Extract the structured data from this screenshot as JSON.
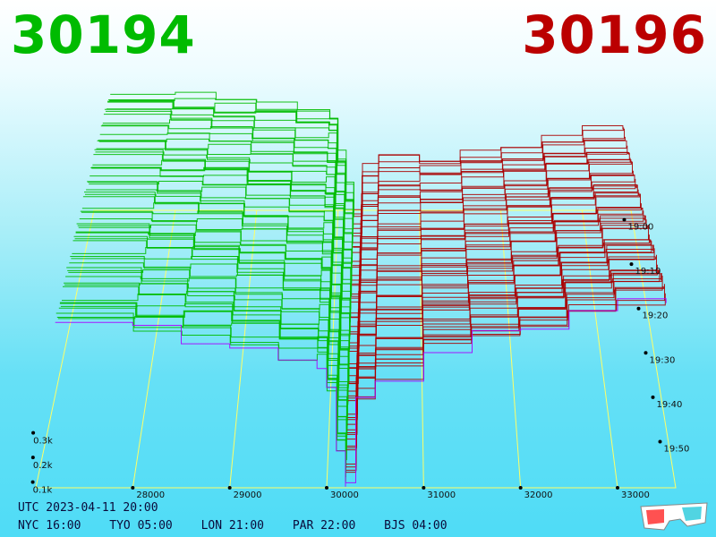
{
  "header": {
    "bid_price": "30194",
    "ask_price": "30196",
    "bid_color": "#00bb00",
    "ask_color": "#bb0000"
  },
  "footer": {
    "utc": "UTC 2023-04-11 20:00",
    "zones": [
      {
        "label": "NYC 16:00"
      },
      {
        "label": "TYO 05:00"
      },
      {
        "label": "LON 21:00"
      },
      {
        "label": "PAR 22:00"
      },
      {
        "label": "BJS 04:00"
      }
    ]
  },
  "icons": {
    "glasses": "3d-glasses-icon"
  },
  "chart_data": {
    "type": "area",
    "view": "3d-depth",
    "x_axis": {
      "ticks": [
        28000,
        29000,
        30000,
        31000,
        32000,
        33000
      ],
      "range": [
        27000,
        33600
      ]
    },
    "z_axis": {
      "ticks": [
        "0.1k",
        "0.2k",
        "0.3k"
      ],
      "values": [
        100,
        200,
        300
      ]
    },
    "time_axis": {
      "ticks": [
        "19:00",
        "19:10",
        "19:20",
        "19:30",
        "19:40",
        "19:50"
      ]
    },
    "snapshots": 60,
    "colors": {
      "bid": "#00bb00",
      "ask": "#aa0000",
      "latest": "#aa00ff",
      "grid": "#ffff66"
    },
    "series": [
      {
        "name": "bid",
        "x": [
          27200,
          28000,
          28500,
          29000,
          29500,
          29900,
          30000,
          30100,
          30194
        ],
        "depth": [
          340,
          330,
          320,
          300,
          280,
          270,
          180,
          80,
          10
        ]
      },
      {
        "name": "ask",
        "x": [
          30196,
          30300,
          30500,
          31000,
          31500,
          32000,
          32500,
          33000,
          33500
        ],
        "depth": [
          10,
          150,
          190,
          210,
          230,
          250,
          280,
          300,
          310
        ]
      }
    ]
  }
}
